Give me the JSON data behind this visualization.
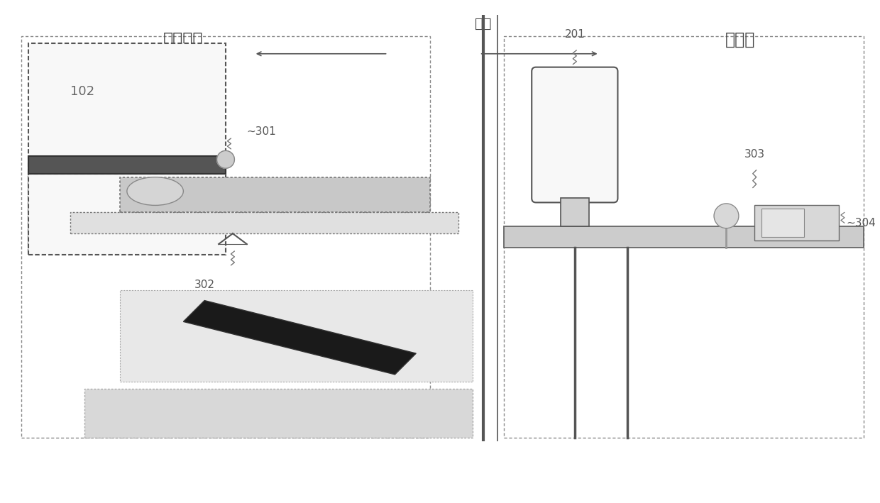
{
  "bg_color": "#ffffff",
  "fig_width": 12.4,
  "fig_height": 7.09,
  "dpi": 100,
  "label_102": "102",
  "label_301": "~301",
  "label_302": "302",
  "label_201": "201",
  "label_303": "303",
  "label_304": "~304",
  "text_scan_room": "扫描室内",
  "text_control_room": "操控室",
  "text_wall": "墙壁",
  "ec_main": "#555555",
  "ec_light": "#888888",
  "fc_white": "#f8f8f8",
  "fc_light_gray": "#d8d8d8",
  "fc_medium_gray": "#bbbbbb",
  "fc_dark": "#1a1a1a",
  "fc_dotted": "#c8c8c8"
}
